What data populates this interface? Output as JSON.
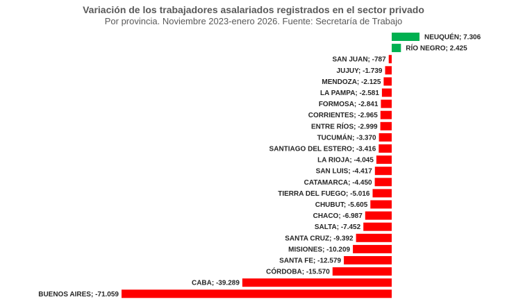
{
  "chart_data": {
    "type": "bar",
    "orientation": "horizontal",
    "title": "Variación de los trabajadores asalariados registrados en el sector privado",
    "subtitle": "Por provincia. Noviembre 2023-enero 2026. Fuente: Secretaría de Trabajo",
    "colors": {
      "positive": "#00B050",
      "negative": "#FF0000"
    },
    "bars": [
      {
        "category": "NEUQUÉN",
        "value": 7306,
        "label": "NEUQUÉN;  7.306"
      },
      {
        "category": "RÍO NEGRO",
        "value": 2425,
        "label": "RÍO NEGRO;  2.425"
      },
      {
        "category": "SAN JUAN",
        "value": -787,
        "label": "SAN JUAN; -787"
      },
      {
        "category": "JUJUY",
        "value": -1739,
        "label": "JUJUY; -1.739"
      },
      {
        "category": "MENDOZA",
        "value": -2125,
        "label": "MENDOZA; -2.125"
      },
      {
        "category": "LA PAMPA",
        "value": -2581,
        "label": "LA PAMPA; -2.581"
      },
      {
        "category": "FORMOSA",
        "value": -2841,
        "label": "FORMOSA; -2.841"
      },
      {
        "category": "CORRIENTES",
        "value": -2965,
        "label": "CORRIENTES; -2.965"
      },
      {
        "category": "ENTRE RÍOS",
        "value": -2999,
        "label": "ENTRE RÍOS; -2.999"
      },
      {
        "category": "TUCUMÁN",
        "value": -3370,
        "label": "TUCUMÁN; -3.370"
      },
      {
        "category": "SANTIAGO DEL ESTERO",
        "value": -3416,
        "label": "SANTIAGO DEL ESTERO; -3.416"
      },
      {
        "category": "LA RIOJA",
        "value": -4045,
        "label": "LA RIOJA; -4.045"
      },
      {
        "category": "SAN LUIS",
        "value": -4417,
        "label": "SAN LUIS; -4.417"
      },
      {
        "category": "CATAMARCA",
        "value": -4450,
        "label": "CATAMARCA; -4.450"
      },
      {
        "category": "TIERRA DEL FUEGO",
        "value": -5016,
        "label": "TIERRA DEL FUEGO; -5.016"
      },
      {
        "category": "CHUBUT",
        "value": -5605,
        "label": "CHUBUT; -5.605"
      },
      {
        "category": "CHACO",
        "value": -6987,
        "label": "CHACO; -6.987"
      },
      {
        "category": "SALTA",
        "value": -7452,
        "label": "SALTA; -7.452"
      },
      {
        "category": "SANTA CRUZ",
        "value": -9392,
        "label": "SANTA CRUZ; -9.392"
      },
      {
        "category": "MISIONES",
        "value": -10209,
        "label": "MISIONES;  -10.209"
      },
      {
        "category": "SANTA FE",
        "value": -12579,
        "label": "SANTA FE; -12.579"
      },
      {
        "category": "CÓRDOBA",
        "value": -15570,
        "label": "CÓRDOBA; -15.570"
      },
      {
        "category": "CABA",
        "value": -39289,
        "label": "CABA; -39.289"
      },
      {
        "category": "BUENOS AIRES",
        "value": -71059,
        "label": "BUENOS AIRES; -71.059"
      }
    ]
  }
}
